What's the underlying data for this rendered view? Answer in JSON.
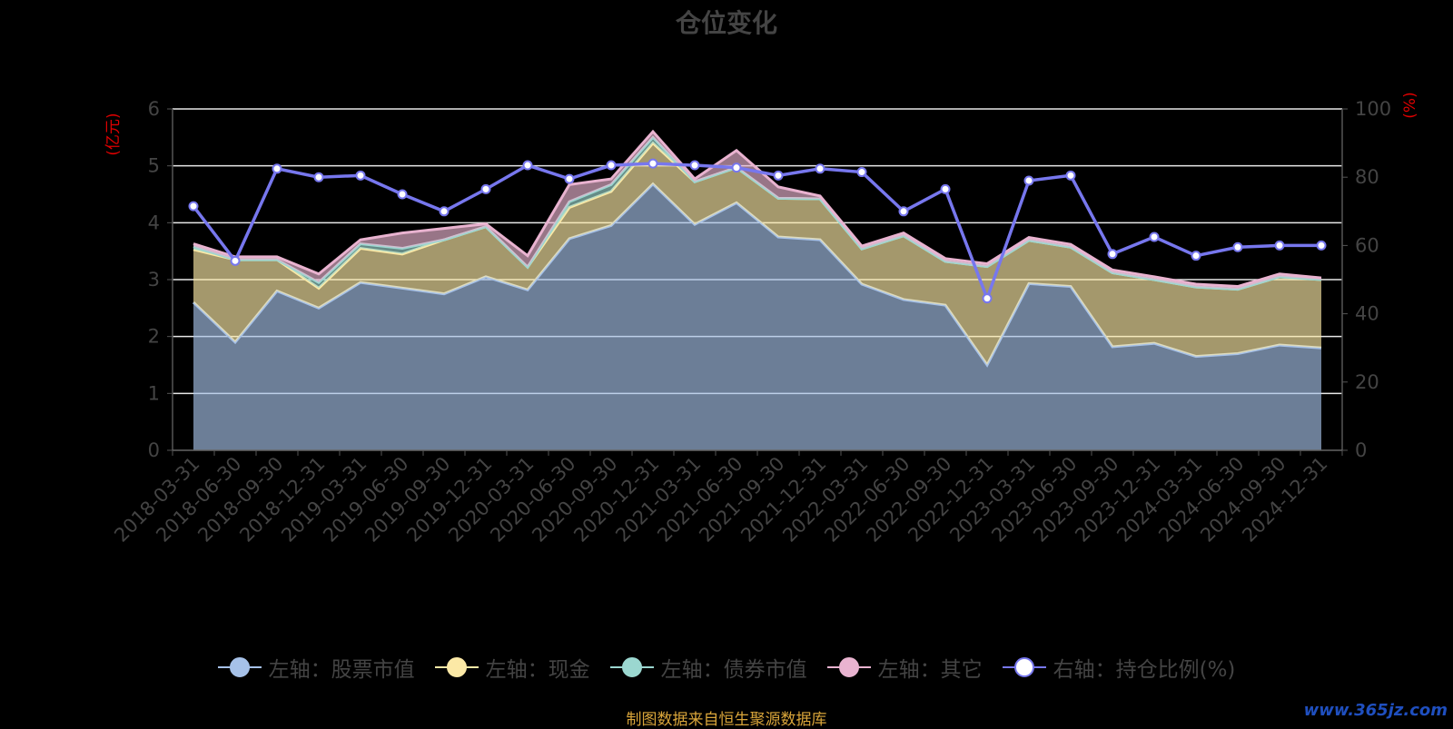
{
  "chart_data": {
    "type": "area",
    "title": "仓位变化",
    "left_axis_unit": "(亿元)",
    "right_axis_unit": "(%)",
    "ylim_left": [
      0,
      6
    ],
    "ylim_right": [
      0,
      100
    ],
    "yticks_left": [
      "0",
      "1",
      "2",
      "3",
      "4",
      "5",
      "6"
    ],
    "yticks_right": [
      "0",
      "20",
      "40",
      "60",
      "80",
      "100"
    ],
    "grid": true,
    "legend_position": "bottom",
    "categories": [
      "2018-03-31",
      "2018-06-30",
      "2018-09-30",
      "2018-12-31",
      "2019-03-31",
      "2019-06-30",
      "2019-09-30",
      "2019-12-31",
      "2020-03-31",
      "2020-06-30",
      "2020-09-30",
      "2020-12-31",
      "2021-03-31",
      "2021-06-30",
      "2021-09-30",
      "2021-12-31",
      "2022-03-31",
      "2022-06-30",
      "2022-09-30",
      "2022-12-31",
      "2023-03-31",
      "2023-06-30",
      "2023-09-30",
      "2023-12-31",
      "2024-03-31",
      "2024-06-30",
      "2024-09-30",
      "2024-12-31"
    ],
    "series": [
      {
        "name": "左轴：股票市值",
        "axis": "left",
        "stacked": true,
        "color": "#a6c1e8",
        "values": [
          2.6,
          1.9,
          2.8,
          2.5,
          2.95,
          2.85,
          2.75,
          3.05,
          2.82,
          3.72,
          3.95,
          4.68,
          3.97,
          4.35,
          3.75,
          3.7,
          2.92,
          2.65,
          2.55,
          1.5,
          2.93,
          2.88,
          1.82,
          1.88,
          1.65,
          1.7,
          1.85,
          1.8
        ]
      },
      {
        "name": "左轴：现金",
        "axis": "left",
        "stacked": true,
        "color": "#fce9a6",
        "values": [
          0.93,
          1.45,
          0.55,
          0.35,
          0.6,
          0.6,
          0.95,
          0.88,
          0.4,
          0.55,
          0.6,
          0.72,
          0.75,
          0.62,
          0.68,
          0.72,
          0.62,
          1.12,
          0.77,
          1.73,
          0.76,
          0.69,
          1.3,
          1.12,
          1.22,
          1.13,
          1.2,
          1.2
        ]
      },
      {
        "name": "左轴：债券市值",
        "axis": "left",
        "stacked": true,
        "color": "#9bd7d0",
        "values": [
          0.05,
          0,
          0,
          0.1,
          0.08,
          0.1,
          0,
          0,
          0,
          0.1,
          0.12,
          0.1,
          0,
          0,
          0,
          0,
          0,
          0,
          0,
          0,
          0,
          0,
          0,
          0,
          0,
          0,
          0,
          0
        ]
      },
      {
        "name": "左轴：其它",
        "axis": "left",
        "stacked": true,
        "color": "#e9b3d0",
        "values": [
          0.05,
          0.05,
          0.05,
          0.15,
          0.07,
          0.27,
          0.2,
          0.05,
          0.2,
          0.3,
          0.1,
          0.1,
          0.05,
          0.3,
          0.2,
          0.05,
          0.05,
          0.05,
          0.05,
          0.05,
          0.05,
          0.05,
          0.05,
          0.05,
          0.05,
          0.05,
          0.05,
          0.03
        ]
      },
      {
        "name": "右轴：持仓比例(%)",
        "axis": "right",
        "type": "line",
        "color": "#7777ee",
        "values": [
          71.5,
          55.5,
          82.5,
          80,
          80.5,
          75,
          70,
          76.5,
          83.5,
          79.5,
          83.5,
          84,
          83.5,
          82.8,
          80.5,
          82.5,
          81.5,
          70,
          76.5,
          44.5,
          79,
          80.5,
          57.5,
          62.5,
          57,
          59.5,
          60,
          60
        ]
      }
    ],
    "source_note": "制图数据来自恒生聚源数据库",
    "watermark": "www.365jz.com"
  }
}
